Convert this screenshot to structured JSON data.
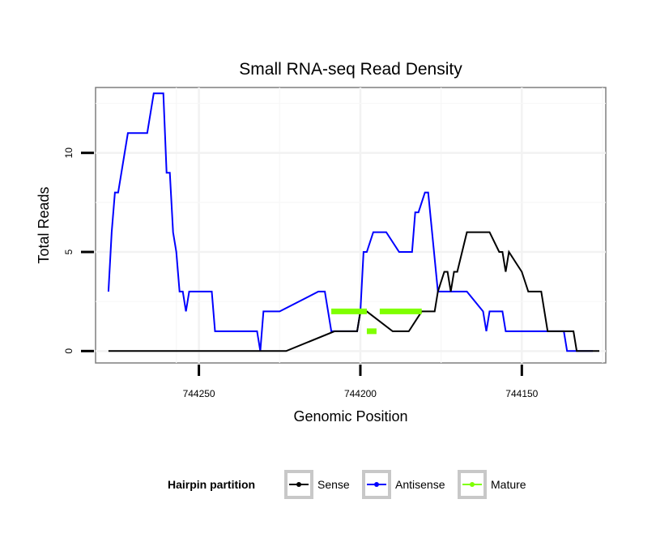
{
  "chart_data": {
    "type": "line",
    "title": "Small RNA-seq Read Density",
    "xlabel": "Genomic Position",
    "ylabel": "Total Reads",
    "xlim": [
      744282,
      744124
    ],
    "x_reversed": true,
    "ylim": [
      -0.6,
      13.3
    ],
    "xticks": [
      744250,
      744200,
      744150
    ],
    "xtick_labels": [
      "744250",
      "744200",
      "744150"
    ],
    "yticks": [
      0,
      5,
      10
    ],
    "ytick_labels": [
      "0",
      "5",
      "10"
    ],
    "grid": true,
    "legend": {
      "title": "Hairpin partition",
      "position": "bottom",
      "entries": [
        "Sense",
        "Antisense",
        "Mature"
      ]
    },
    "series": [
      {
        "name": "Antisense",
        "color": "#0000ff",
        "x": [
          744278,
          744277,
          744276,
          744275,
          744274,
          744272,
          744271,
          744266,
          744264,
          744261,
          744260,
          744259,
          744258,
          744257,
          744256,
          744255,
          744254,
          744253,
          744246,
          744245,
          744232,
          744231,
          744230,
          744226,
          744225,
          744213,
          744211,
          744210,
          744209,
          744201,
          744200,
          744199,
          744198,
          744196,
          744192,
          744188,
          744184,
          744183,
          744182,
          744180,
          744179,
          744176,
          744172,
          744171,
          744167,
          744162,
          744161,
          744160,
          744156,
          744155,
          744146,
          744144,
          744137,
          744136,
          744131,
          744128
        ],
        "y": [
          3,
          6,
          8,
          8,
          9,
          11,
          11,
          11,
          13,
          13,
          9,
          9,
          6,
          5,
          3,
          3,
          2,
          3,
          3,
          1,
          1,
          0,
          2,
          2,
          2,
          3,
          3,
          2,
          1,
          1,
          2,
          5,
          5,
          6,
          6,
          5,
          5,
          7,
          7,
          8,
          8,
          3,
          3,
          3,
          3,
          2,
          1,
          2,
          2,
          1,
          1,
          1,
          1,
          0,
          0,
          0
        ]
      },
      {
        "name": "Sense",
        "color": "#000000",
        "x": [
          744278,
          744225,
          744224,
          744223,
          744208,
          744207,
          744201,
          744200,
          744198,
          744190,
          744186,
          744185,
          744181,
          744180,
          744177,
          744176,
          744174,
          744173,
          744172,
          744171,
          744170,
          744167,
          744164,
          744160,
          744157,
          744156,
          744155,
          744154,
          744150,
          744148,
          744146,
          744144,
          744142,
          744140,
          744137,
          744134,
          744133,
          744126
        ],
        "y": [
          0,
          0,
          0,
          0,
          1,
          1,
          1,
          2,
          2,
          1,
          1,
          1,
          2,
          2,
          2,
          3,
          4,
          4,
          3,
          4,
          4,
          6,
          6,
          6,
          5,
          5,
          4,
          5,
          4,
          3,
          3,
          3,
          1,
          1,
          1,
          1,
          0,
          0
        ]
      },
      {
        "name": "Mature",
        "color": "#7fff00",
        "segments": [
          {
            "x": [
              744209,
              744198
            ],
            "y": [
              2,
              2
            ]
          },
          {
            "x": [
              744198,
              744195
            ],
            "y": [
              1,
              1
            ]
          },
          {
            "x": [
              744194,
              744181
            ],
            "y": [
              2,
              2
            ]
          }
        ]
      }
    ]
  }
}
